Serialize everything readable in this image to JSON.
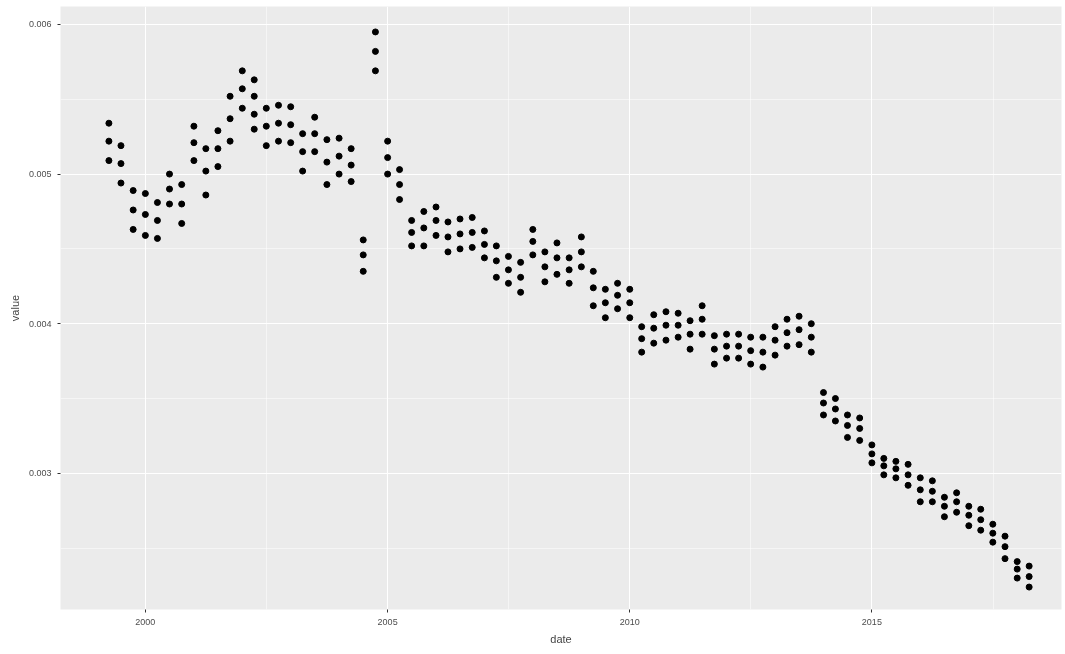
{
  "chart_data": {
    "type": "scatter",
    "xlabel": "date",
    "ylabel": "value",
    "marker": "circle",
    "grid": true,
    "xlim": [
      "1998-04",
      "2018-12"
    ],
    "ylim": [
      0.00209,
      0.00612
    ],
    "xticks": [
      "2000",
      "2005",
      "2010",
      "2015"
    ],
    "yticks": [
      0.003,
      0.004,
      0.005,
      0.006
    ],
    "series": [
      {
        "color": "#000000",
        "x": [
          "1999-04",
          "1999-04",
          "1999-04",
          "1999-07",
          "1999-07",
          "1999-07",
          "1999-10",
          "1999-10",
          "1999-10",
          "2000-01",
          "2000-01",
          "2000-01",
          "2000-04",
          "2000-04",
          "2000-04",
          "2000-07",
          "2000-07",
          "2000-07",
          "2000-10",
          "2000-10",
          "2000-10",
          "2001-01",
          "2001-01",
          "2001-01",
          "2001-04",
          "2001-04",
          "2001-04",
          "2001-07",
          "2001-07",
          "2001-07",
          "2001-10",
          "2001-10",
          "2001-10",
          "2002-01",
          "2002-01",
          "2002-01",
          "2002-04",
          "2002-04",
          "2002-04",
          "2002-07",
          "2002-07",
          "2002-07",
          "2002-10",
          "2002-10",
          "2002-10",
          "2003-01",
          "2003-01",
          "2003-01",
          "2003-04",
          "2003-04",
          "2003-04",
          "2003-07",
          "2003-07",
          "2003-07",
          "2003-10",
          "2003-10",
          "2003-10",
          "2004-01",
          "2004-01",
          "2004-01",
          "2004-04",
          "2004-04",
          "2004-04",
          "2004-07",
          "2004-07",
          "2004-07",
          "2004-10",
          "2004-10",
          "2004-10",
          "2005-01",
          "2005-01",
          "2005-01",
          "2005-04",
          "2005-04",
          "2005-04",
          "2005-07",
          "2005-07",
          "2005-07",
          "2005-10",
          "2005-10",
          "2005-10",
          "2006-01",
          "2006-01",
          "2006-01",
          "2006-04",
          "2006-04",
          "2006-04",
          "2006-07",
          "2006-07",
          "2006-07",
          "2006-10",
          "2006-10",
          "2006-10",
          "2007-01",
          "2007-01",
          "2007-01",
          "2007-04",
          "2007-04",
          "2007-04",
          "2007-07",
          "2007-07",
          "2007-07",
          "2007-10",
          "2007-10",
          "2007-10",
          "2008-01",
          "2008-01",
          "2008-01",
          "2008-04",
          "2008-04",
          "2008-04",
          "2008-07",
          "2008-07",
          "2008-07",
          "2008-10",
          "2008-10",
          "2008-10",
          "2009-01",
          "2009-01",
          "2009-01",
          "2009-04",
          "2009-04",
          "2009-04",
          "2009-07",
          "2009-07",
          "2009-07",
          "2009-10",
          "2009-10",
          "2009-10",
          "2010-01",
          "2010-01",
          "2010-01",
          "2010-04",
          "2010-04",
          "2010-04",
          "2010-07",
          "2010-07",
          "2010-07",
          "2010-10",
          "2010-10",
          "2010-10",
          "2011-01",
          "2011-01",
          "2011-01",
          "2011-04",
          "2011-04",
          "2011-04",
          "2011-07",
          "2011-07",
          "2011-07",
          "2011-10",
          "2011-10",
          "2011-10",
          "2012-01",
          "2012-01",
          "2012-01",
          "2012-04",
          "2012-04",
          "2012-04",
          "2012-07",
          "2012-07",
          "2012-07",
          "2012-10",
          "2012-10",
          "2012-10",
          "2013-01",
          "2013-01",
          "2013-01",
          "2013-04",
          "2013-04",
          "2013-04",
          "2013-07",
          "2013-07",
          "2013-07",
          "2013-10",
          "2013-10",
          "2013-10",
          "2014-01",
          "2014-01",
          "2014-01",
          "2014-04",
          "2014-04",
          "2014-04",
          "2014-07",
          "2014-07",
          "2014-07",
          "2014-10",
          "2014-10",
          "2014-10",
          "2015-01",
          "2015-01",
          "2015-01",
          "2015-04",
          "2015-04",
          "2015-04",
          "2015-07",
          "2015-07",
          "2015-07",
          "2015-10",
          "2015-10",
          "2015-10",
          "2016-01",
          "2016-01",
          "2016-01",
          "2016-04",
          "2016-04",
          "2016-04",
          "2016-07",
          "2016-07",
          "2016-07",
          "2016-10",
          "2016-10",
          "2016-10",
          "2017-01",
          "2017-01",
          "2017-01",
          "2017-04",
          "2017-04",
          "2017-04",
          "2017-07",
          "2017-07",
          "2017-07",
          "2017-10",
          "2017-10",
          "2017-10",
          "2018-01",
          "2018-01",
          "2018-01",
          "2018-04",
          "2018-04",
          "2018-04",
          "2002-04"
        ],
        "values": [
          0.00534,
          0.00522,
          0.00509,
          0.00519,
          0.00507,
          0.00494,
          0.00489,
          0.00476,
          0.00463,
          0.00487,
          0.00473,
          0.00459,
          0.00481,
          0.00469,
          0.00457,
          0.005,
          0.0049,
          0.0048,
          0.00493,
          0.0048,
          0.00467,
          0.00532,
          0.00521,
          0.00509,
          0.00517,
          0.00502,
          0.00486,
          0.00529,
          0.00517,
          0.00505,
          0.00552,
          0.00537,
          0.00522,
          0.00569,
          0.00557,
          0.00544,
          0.00563,
          0.00552,
          0.0054,
          0.00544,
          0.00532,
          0.00519,
          0.00546,
          0.00534,
          0.00522,
          0.00545,
          0.00533,
          0.00521,
          0.00527,
          0.00515,
          0.00502,
          0.00538,
          0.00527,
          0.00515,
          0.00523,
          0.00508,
          0.00493,
          0.00524,
          0.00512,
          0.005,
          0.00517,
          0.00506,
          0.00495,
          0.00456,
          0.00446,
          0.00435,
          0.00595,
          0.00582,
          0.00569,
          0.00522,
          0.00511,
          0.005,
          0.00503,
          0.00493,
          0.00483,
          0.00469,
          0.00461,
          0.00452,
          0.00475,
          0.00464,
          0.00452,
          0.00478,
          0.00469,
          0.00459,
          0.00468,
          0.00458,
          0.00448,
          0.0047,
          0.0046,
          0.0045,
          0.00471,
          0.00461,
          0.00451,
          0.00462,
          0.00453,
          0.00444,
          0.00452,
          0.00442,
          0.00431,
          0.00445,
          0.00436,
          0.00427,
          0.00441,
          0.00431,
          0.00421,
          0.00463,
          0.00455,
          0.00446,
          0.00448,
          0.00438,
          0.00428,
          0.00454,
          0.00444,
          0.00433,
          0.00444,
          0.00436,
          0.00427,
          0.00458,
          0.00448,
          0.00438,
          0.00435,
          0.00424,
          0.00412,
          0.00423,
          0.00414,
          0.00404,
          0.00427,
          0.00419,
          0.0041,
          0.00423,
          0.00414,
          0.00404,
          0.00398,
          0.0039,
          0.00381,
          0.00406,
          0.00397,
          0.00387,
          0.00408,
          0.00399,
          0.00389,
          0.00407,
          0.00399,
          0.00391,
          0.00402,
          0.00393,
          0.00383,
          0.00412,
          0.00403,
          0.00393,
          0.00392,
          0.00383,
          0.00373,
          0.00393,
          0.00385,
          0.00377,
          0.00393,
          0.00385,
          0.00377,
          0.00391,
          0.00382,
          0.00373,
          0.00391,
          0.00381,
          0.00371,
          0.00398,
          0.00389,
          0.00379,
          0.00403,
          0.00394,
          0.00385,
          0.00405,
          0.00396,
          0.00386,
          0.004,
          0.00391,
          0.00381,
          0.00354,
          0.00347,
          0.00339,
          0.0035,
          0.00343,
          0.00335,
          0.00339,
          0.00332,
          0.00324,
          0.00337,
          0.0033,
          0.00322,
          0.00319,
          0.00313,
          0.00307,
          0.0031,
          0.00305,
          0.00299,
          0.00308,
          0.00303,
          0.00297,
          0.00306,
          0.00299,
          0.00292,
          0.00297,
          0.00289,
          0.00281,
          0.00295,
          0.00288,
          0.00281,
          0.00284,
          0.00278,
          0.00271,
          0.00287,
          0.00281,
          0.00274,
          0.00278,
          0.00272,
          0.00265,
          0.00276,
          0.00269,
          0.00262,
          0.00266,
          0.0026,
          0.00254,
          0.00258,
          0.00251,
          0.00243,
          0.00241,
          0.00236,
          0.0023,
          0.00238,
          0.00231,
          0.00224,
          0.0053
        ]
      }
    ]
  }
}
